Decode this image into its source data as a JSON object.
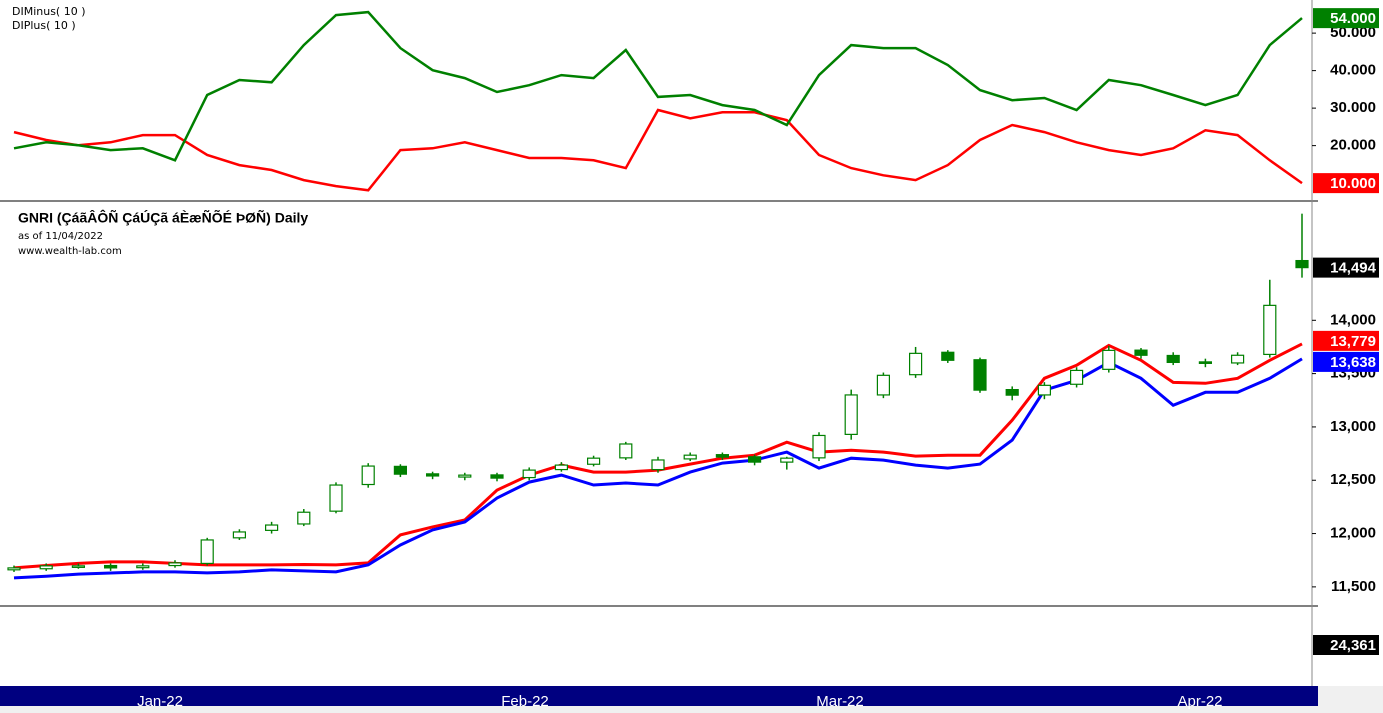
{
  "chart_data": [
    {
      "type": "line",
      "series": [
        {
          "name": "DIMinus( 10 )",
          "color": "#ff0000",
          "last_label": "10.000",
          "values": [
            23.6,
            21.5,
            20.1,
            20.9,
            22.8,
            22.8,
            17.5,
            14.8,
            13.5,
            10.8,
            9.2,
            8.1,
            18.8,
            19.3,
            20.9,
            18.8,
            16.7,
            16.7,
            16.1,
            14,
            29.5,
            27.3,
            28.9,
            28.9,
            26.8,
            17.5,
            14,
            12.1,
            10.8,
            14.8,
            21.5,
            25.5,
            23.6,
            20.9,
            18.8,
            17.5,
            19.3,
            24.1,
            22.8,
            16.1,
            10
          ]
        },
        {
          "name": "DIPlus( 10 )",
          "color": "#008000",
          "last_label": "54.000",
          "values": [
            19.3,
            20.9,
            20.1,
            18.8,
            19.3,
            16.1,
            33.5,
            37.5,
            36.9,
            46.8,
            54.8,
            55.6,
            46,
            40.1,
            38,
            34.3,
            36.1,
            38.8,
            38,
            45.5,
            33,
            33.5,
            30.8,
            29.5,
            25.5,
            38.8,
            46.8,
            46,
            46,
            41.5,
            34.8,
            32.1,
            32.7,
            29.5,
            37.5,
            36.1,
            33.5,
            30.8,
            33.5,
            46.8,
            54
          ]
        }
      ],
      "ylim": [
        5.5,
        58.3
      ],
      "yticks": [
        {
          "value": 20,
          "label": "20.000"
        },
        {
          "value": 30,
          "label": "30.000"
        },
        {
          "value": 40,
          "label": "40.000"
        },
        {
          "value": 50,
          "label": "50.000"
        }
      ]
    },
    {
      "type": "candlestick",
      "title": "GNRI (ÇáãÂÔÑ ÇáÚÇã áÈæÑÕÉ ÞØÑ) Daily",
      "subtitle": "as of 11/04/2022",
      "source": "www.wealth-lab.com",
      "color": "#008000",
      "last_label": "14,494",
      "open": [
        11660,
        11670,
        11690,
        11700,
        11680,
        11700,
        11720,
        11960,
        12030,
        12090,
        12210,
        12460,
        12630,
        12560,
        12530,
        12550,
        12525,
        12600,
        12650,
        12710,
        12600,
        12700,
        12740,
        12720,
        12670,
        12710,
        12930,
        13300,
        13490,
        13700,
        13630,
        13350,
        13300,
        13400,
        13540,
        13720,
        13670,
        13610,
        13600,
        13680,
        14560
      ],
      "high": [
        11700,
        11720,
        11720,
        11720,
        11720,
        11750,
        11960,
        12040,
        12110,
        12230,
        12480,
        12660,
        12650,
        12580,
        12570,
        12570,
        12620,
        12670,
        12730,
        12860,
        12720,
        12760,
        12760,
        12740,
        12720,
        12950,
        13350,
        13510,
        13750,
        13720,
        13650,
        13380,
        13420,
        13560,
        13760,
        13740,
        13700,
        13640,
        13700,
        14380,
        15000
      ],
      "low": [
        11640,
        11650,
        11670,
        11650,
        11660,
        11680,
        11700,
        11940,
        12000,
        12070,
        12190,
        12430,
        12530,
        12510,
        12500,
        12490,
        12500,
        12580,
        12630,
        12690,
        12570,
        12680,
        12690,
        12640,
        12600,
        12680,
        12880,
        13270,
        13460,
        13600,
        13320,
        13250,
        13260,
        13370,
        13510,
        13640,
        13580,
        13560,
        13580,
        13650,
        14400
      ],
      "close": [
        11678,
        11697,
        11697,
        11678,
        11697,
        11725,
        11940,
        12015,
        12080,
        12200,
        12455,
        12633,
        12557,
        12540,
        12548,
        12520,
        12595,
        12642,
        12707,
        12840,
        12690,
        12735,
        12717,
        12670,
        12707,
        12920,
        13300,
        13484,
        13690,
        13625,
        13345,
        13298,
        13390,
        13530,
        13718,
        13672,
        13605,
        13605,
        13672,
        14140,
        14494
      ],
      "series": [
        {
          "color": "#ff0000",
          "last_label": "13,779",
          "values": [
            11678,
            11700,
            11720,
            11734,
            11734,
            11720,
            11706,
            11706,
            11706,
            11710,
            11706,
            11725,
            11987,
            12062,
            12127,
            12408,
            12548,
            12642,
            12576,
            12576,
            12595,
            12651,
            12707,
            12735,
            12857,
            12764,
            12782,
            12764,
            12726,
            12735,
            12735,
            13063,
            13456,
            13578,
            13765,
            13625,
            13418,
            13409,
            13456,
            13625,
            13779
          ]
        },
        {
          "color": "#0000ff",
          "last_label": "13,638",
          "values": [
            11584,
            11600,
            11620,
            11630,
            11640,
            11640,
            11631,
            11640,
            11659,
            11650,
            11640,
            11706,
            11893,
            12034,
            12108,
            12333,
            12483,
            12548,
            12455,
            12474,
            12455,
            12576,
            12661,
            12689,
            12764,
            12614,
            12707,
            12689,
            12642,
            12614,
            12651,
            12876,
            13344,
            13437,
            13605,
            13456,
            13203,
            13325,
            13325,
            13456,
            13638
          ]
        }
      ],
      "ylim": [
        11330,
        15100
      ],
      "yticks": [
        {
          "value": 11500,
          "label": "11,500"
        },
        {
          "value": 12000,
          "label": "12,000"
        },
        {
          "value": 12500,
          "label": "12,500"
        },
        {
          "value": 13000,
          "label": "13,000"
        },
        {
          "value": 13500,
          "label": "13,500"
        },
        {
          "value": 14000,
          "label": "14,000"
        }
      ],
      "xlabels": [
        "Jan-22",
        "Feb-22",
        "Mar-22",
        "Apr-22"
      ]
    },
    {
      "type": "volume",
      "value": 24361,
      "value_label": "24,361"
    }
  ]
}
